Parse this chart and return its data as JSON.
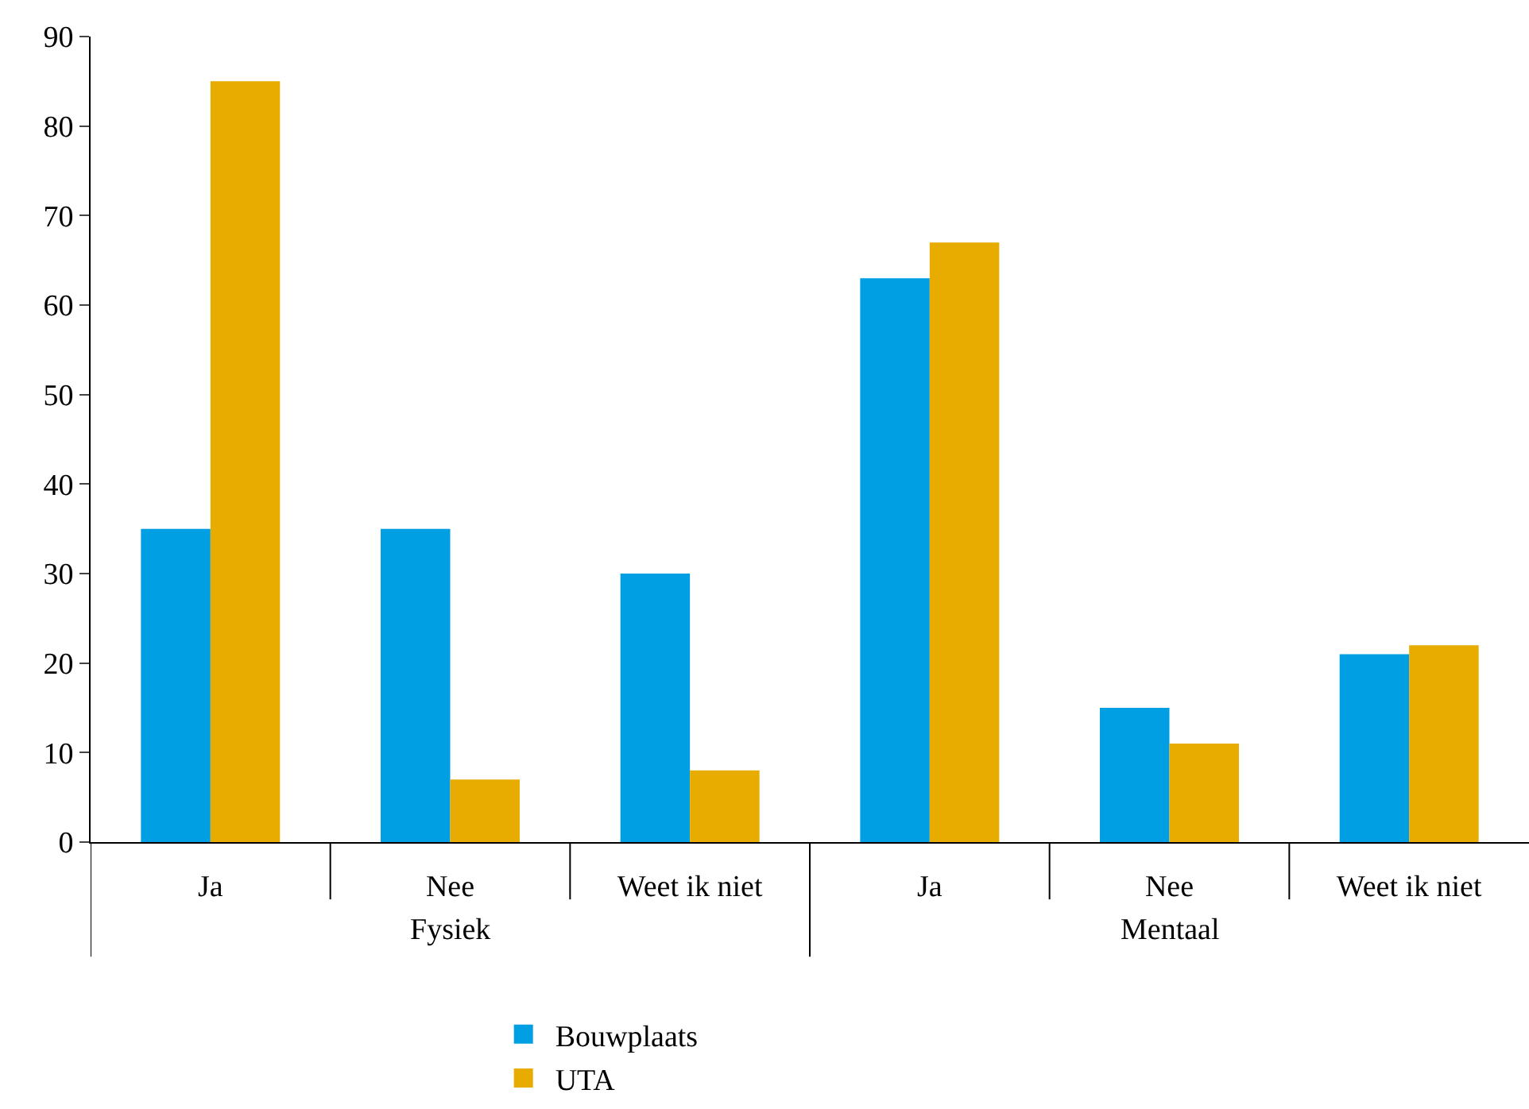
{
  "chart_data": {
    "type": "bar",
    "categories": [
      "Ja",
      "Nee",
      "Weet ik niet",
      "Ja",
      "Nee",
      "Weet ik niet"
    ],
    "series": [
      {
        "name": "Bouwplaats",
        "color": "#009fe3",
        "values": [
          35,
          35,
          30,
          63,
          15,
          21
        ]
      },
      {
        "name": "UTA",
        "color": "#e8ac00",
        "values": [
          85,
          7,
          8,
          67,
          11,
          22
        ]
      }
    ],
    "annotations": [
      "Fysiek",
      "Mentaal"
    ],
    "ylim": [
      0,
      90
    ],
    "yticks": [
      0,
      10,
      20,
      30,
      40,
      50,
      60,
      70,
      80,
      90
    ],
    "legend": "bottom"
  }
}
